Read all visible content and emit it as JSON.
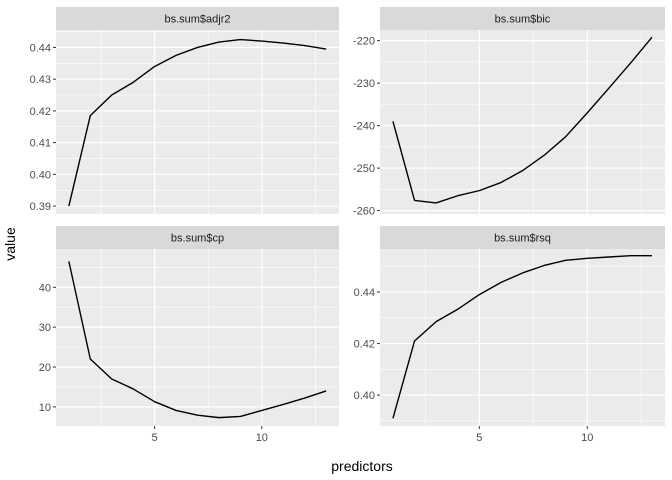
{
  "chart_data": {
    "type": "line",
    "xlabel": "predictors",
    "ylabel": "value",
    "facet_scales": "free_y",
    "xlim": [
      0.4,
      13.6
    ],
    "x_ticks": [
      5,
      10
    ],
    "grid": true,
    "colors": {
      "panel_bg": "#ebebeb",
      "strip_bg": "#d9d9d9",
      "grid": "#ffffff",
      "line": "#000000"
    },
    "facets": [
      {
        "title": "bs.sum$adjr2",
        "ylim": [
          0.3875,
          0.4455
        ],
        "y_ticks": [
          0.39,
          0.4,
          0.41,
          0.42,
          0.43,
          0.44
        ],
        "y_tick_labels": [
          "0.39",
          "0.40",
          "0.41",
          "0.42",
          "0.43",
          "0.44"
        ],
        "x": [
          1,
          2,
          3,
          4,
          5,
          6,
          7,
          8,
          9,
          10,
          11,
          12,
          13
        ],
        "y": [
          0.39,
          0.4185,
          0.425,
          0.429,
          0.434,
          0.4375,
          0.44,
          0.4417,
          0.4425,
          0.442,
          0.4414,
          0.4406,
          0.4395
        ]
      },
      {
        "title": "bs.sum$bic",
        "ylim": [
          -260.8,
          -217.5
        ],
        "y_ticks": [
          -260,
          -250,
          -240,
          -230,
          -220
        ],
        "y_tick_labels": [
          "-260",
          "-250",
          "-240",
          "-230",
          "-220"
        ],
        "x": [
          1,
          2,
          3,
          4,
          5,
          6,
          7,
          8,
          9,
          10,
          11,
          12,
          13
        ],
        "y": [
          -239.0,
          -257.6,
          -258.2,
          -256.5,
          -255.3,
          -253.4,
          -250.6,
          -247.0,
          -242.6,
          -237.0,
          -231.2,
          -225.3,
          -219.2
        ]
      },
      {
        "title": "bs.sum$cp",
        "ylim": [
          5.2,
          49.6
        ],
        "y_ticks": [
          10,
          20,
          30,
          40
        ],
        "y_tick_labels": [
          "10",
          "20",
          "30",
          "40"
        ],
        "x": [
          1,
          2,
          3,
          4,
          5,
          6,
          7,
          8,
          9,
          10,
          11,
          12,
          13
        ],
        "y": [
          46.5,
          22.0,
          17.0,
          14.5,
          11.3,
          9.1,
          7.9,
          7.3,
          7.6,
          9.1,
          10.6,
          12.2,
          14.0
        ]
      },
      {
        "title": "bs.sum$rsq",
        "ylim": [
          0.388,
          0.4567
        ],
        "y_ticks": [
          0.4,
          0.42,
          0.44
        ],
        "y_tick_labels": [
          "0.40",
          "0.42",
          "0.44"
        ],
        "x": [
          1,
          2,
          3,
          4,
          5,
          6,
          7,
          8,
          9,
          10,
          11,
          12,
          13
        ],
        "y": [
          0.391,
          0.421,
          0.4285,
          0.4333,
          0.439,
          0.4437,
          0.4474,
          0.4503,
          0.4523,
          0.4531,
          0.4536,
          0.4541,
          0.4541
        ]
      }
    ]
  }
}
